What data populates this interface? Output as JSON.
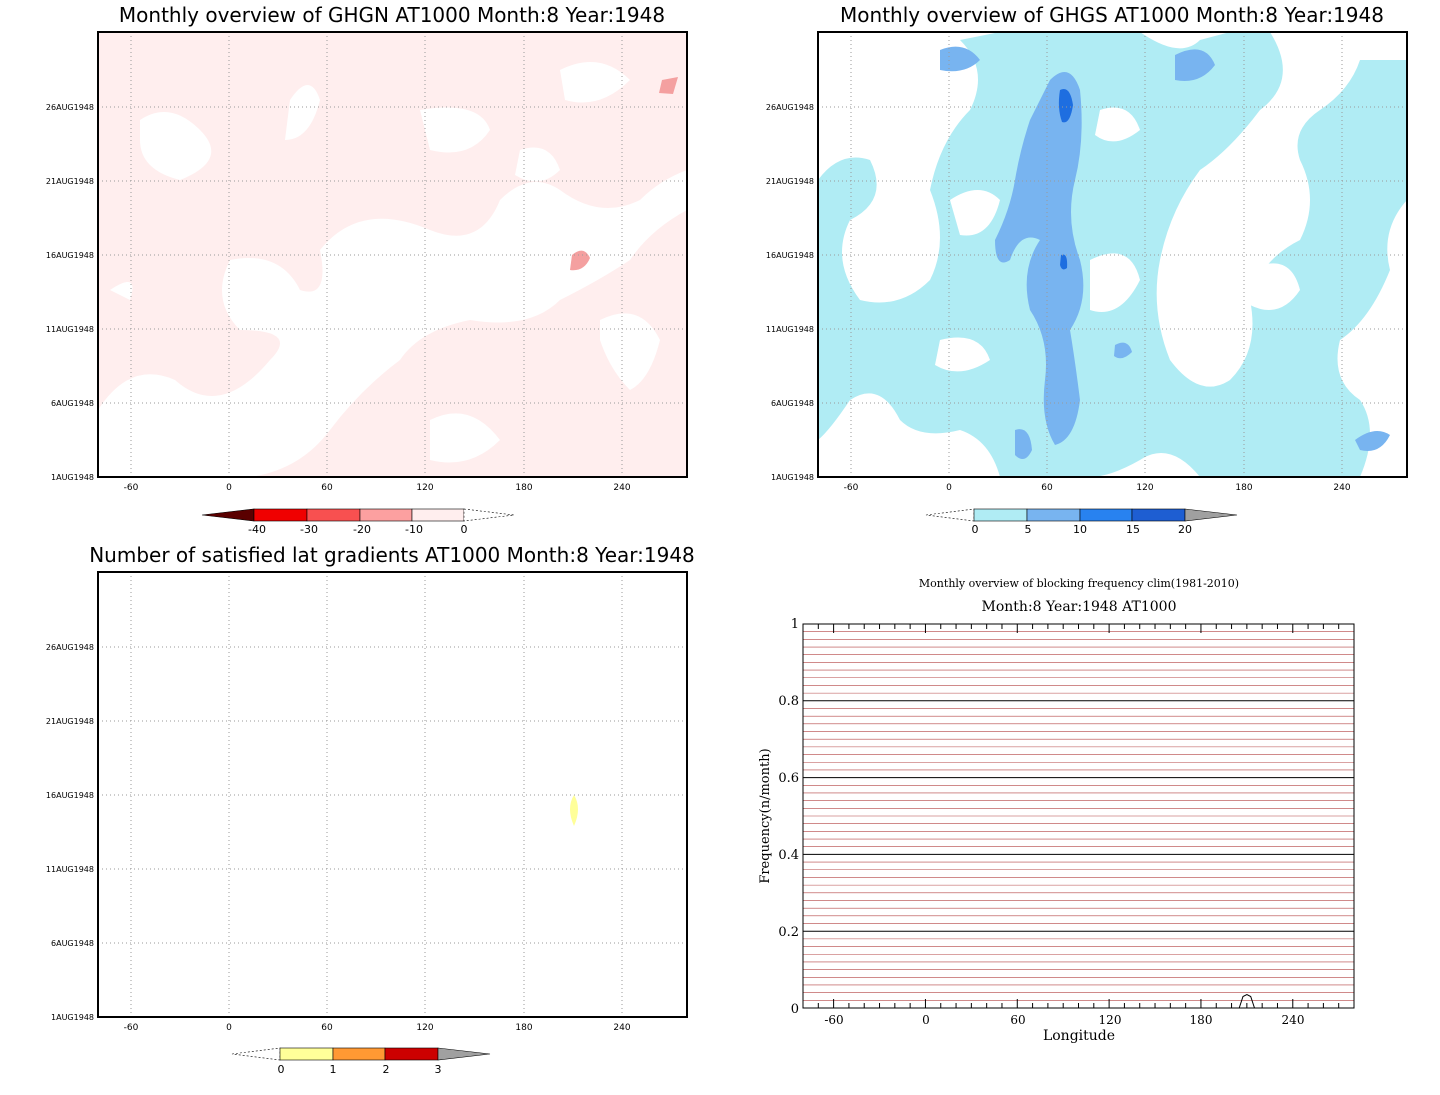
{
  "colors": {
    "ghgn_fill": "#ffeeee",
    "ghgn_blob": "#f4a0a0",
    "ghgs_light": "#b0ecf4",
    "ghgs_mid": "#78b4f0",
    "ghgs_dark": "#1e6ee0",
    "grad_yellow": "#ffff99",
    "clim_red": "#b44444",
    "clim_black": "#000000"
  },
  "chart_data": [
    {
      "id": "ghgn",
      "type": "heatmap",
      "title": "Monthly overview of GHGN AT1000 Month:8 Year:1948",
      "x_ticks": [
        "-60",
        "0",
        "60",
        "120",
        "180",
        "240"
      ],
      "x_tick_values": [
        -60,
        0,
        60,
        120,
        180,
        240
      ],
      "y_ticks": [
        "1AUG1948",
        "6AUG1948",
        "11AUG1948",
        "16AUG1948",
        "21AUG1948",
        "26AUG1948"
      ],
      "y_tick_values": [
        1,
        6,
        11,
        16,
        21,
        26
      ],
      "xlim": [
        -80,
        280
      ],
      "ylim": [
        1,
        31
      ],
      "grid": true,
      "colorbar": {
        "labels": [
          "-40",
          "-30",
          "-20",
          "-10",
          "0"
        ],
        "colors": [
          "#5a0000",
          "#f00000",
          "#f85050",
          "#fca0a0",
          "#ffeeee",
          "#ffffff"
        ]
      }
    },
    {
      "id": "ghgs",
      "type": "heatmap",
      "title": "Monthly overview of GHGS AT1000 Month:8 Year:1948",
      "x_ticks": [
        "-60",
        "0",
        "60",
        "120",
        "180",
        "240"
      ],
      "x_tick_values": [
        -60,
        0,
        60,
        120,
        180,
        240
      ],
      "y_ticks": [
        "1AUG1948",
        "6AUG1948",
        "11AUG1948",
        "16AUG1948",
        "21AUG1948",
        "26AUG1948"
      ],
      "y_tick_values": [
        1,
        6,
        11,
        16,
        21,
        26
      ],
      "xlim": [
        -80,
        280
      ],
      "ylim": [
        1,
        31
      ],
      "grid": true,
      "colorbar": {
        "labels": [
          "0",
          "5",
          "10",
          "15",
          "20"
        ],
        "colors": [
          "#ffffff",
          "#b0ecf4",
          "#78b4f0",
          "#2882f0",
          "#1e5ed2",
          "#a0a0a0"
        ]
      }
    },
    {
      "id": "grad",
      "type": "heatmap",
      "title": "Number of satisfied lat gradients AT1000 Month:8 Year:1948",
      "x_ticks": [
        "-60",
        "0",
        "60",
        "120",
        "180",
        "240"
      ],
      "x_tick_values": [
        -60,
        0,
        60,
        120,
        180,
        240
      ],
      "y_ticks": [
        "1AUG1948",
        "6AUG1948",
        "11AUG1948",
        "16AUG1948",
        "21AUG1948",
        "26AUG1948"
      ],
      "y_tick_values": [
        1,
        6,
        11,
        16,
        21,
        26
      ],
      "xlim": [
        -80,
        280
      ],
      "ylim": [
        1,
        31
      ],
      "grid": true,
      "colorbar": {
        "labels": [
          "0",
          "1",
          "2",
          "3"
        ],
        "colors": [
          "#ffffff",
          "#ffff99",
          "#ff9933",
          "#cc0000",
          "#a0a0a0"
        ]
      }
    },
    {
      "id": "clim",
      "type": "line",
      "title": "Monthly overview of blocking frequency clim(1981-2010)",
      "subtitle": "Month:8 Year:1948  AT1000",
      "xlabel": "Longitude",
      "ylabel": "Frequency(n/month)",
      "x_ticks": [
        "-60",
        "0",
        "60",
        "120",
        "180",
        "240"
      ],
      "x_tick_values": [
        -60,
        0,
        60,
        120,
        180,
        240
      ],
      "y_ticks": [
        "0",
        "0.2",
        "0.4",
        "0.6",
        "0.8",
        "1"
      ],
      "y_tick_values": [
        0,
        0.2,
        0.4,
        0.6,
        0.8,
        1
      ],
      "xlim": [
        -80,
        280
      ],
      "ylim": [
        0,
        1
      ],
      "series": [
        {
          "x": [
            205,
            207.5,
            210,
            212.5,
            215
          ],
          "y": [
            0,
            0.03,
            0.035,
            0.03,
            0
          ]
        }
      ]
    }
  ]
}
